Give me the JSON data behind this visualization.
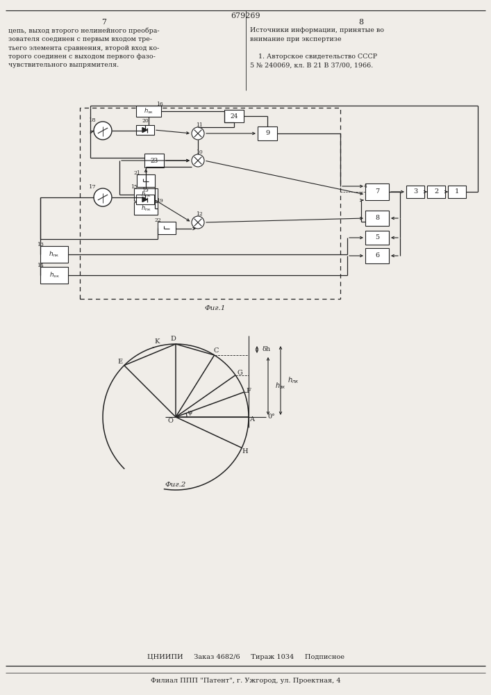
{
  "page_title": "679269",
  "page_num_left": "7",
  "page_num_right": "8",
  "left_text_lines": [
    "цепь, выход второго нелинейного преобра-",
    "зователя соединен с первым входом тре-",
    "тьего элемента сравнения, второй вход ко-",
    "торого соединен с выходом первого фазо-",
    "чувствительного выпрямителя."
  ],
  "right_text_lines": [
    "Источники информации, принятые во",
    "внимание при экспертизе",
    "",
    "    1. Авторское свидетельство СССР",
    "5 № 240069, кл. В 21 В 37/00, 1966."
  ],
  "fig1_caption": "Фиг.1",
  "fig2_caption": "Фиг.2",
  "footer_line1": "ЦНИИПИ     Заказ 4682/6     Тираж 1034     Подписное",
  "footer_line2": "Филиал ППП \"Патент\", г. Ужгород, ул. Проектная, 4",
  "bg_color": "#f0ede8",
  "line_color": "#222222"
}
